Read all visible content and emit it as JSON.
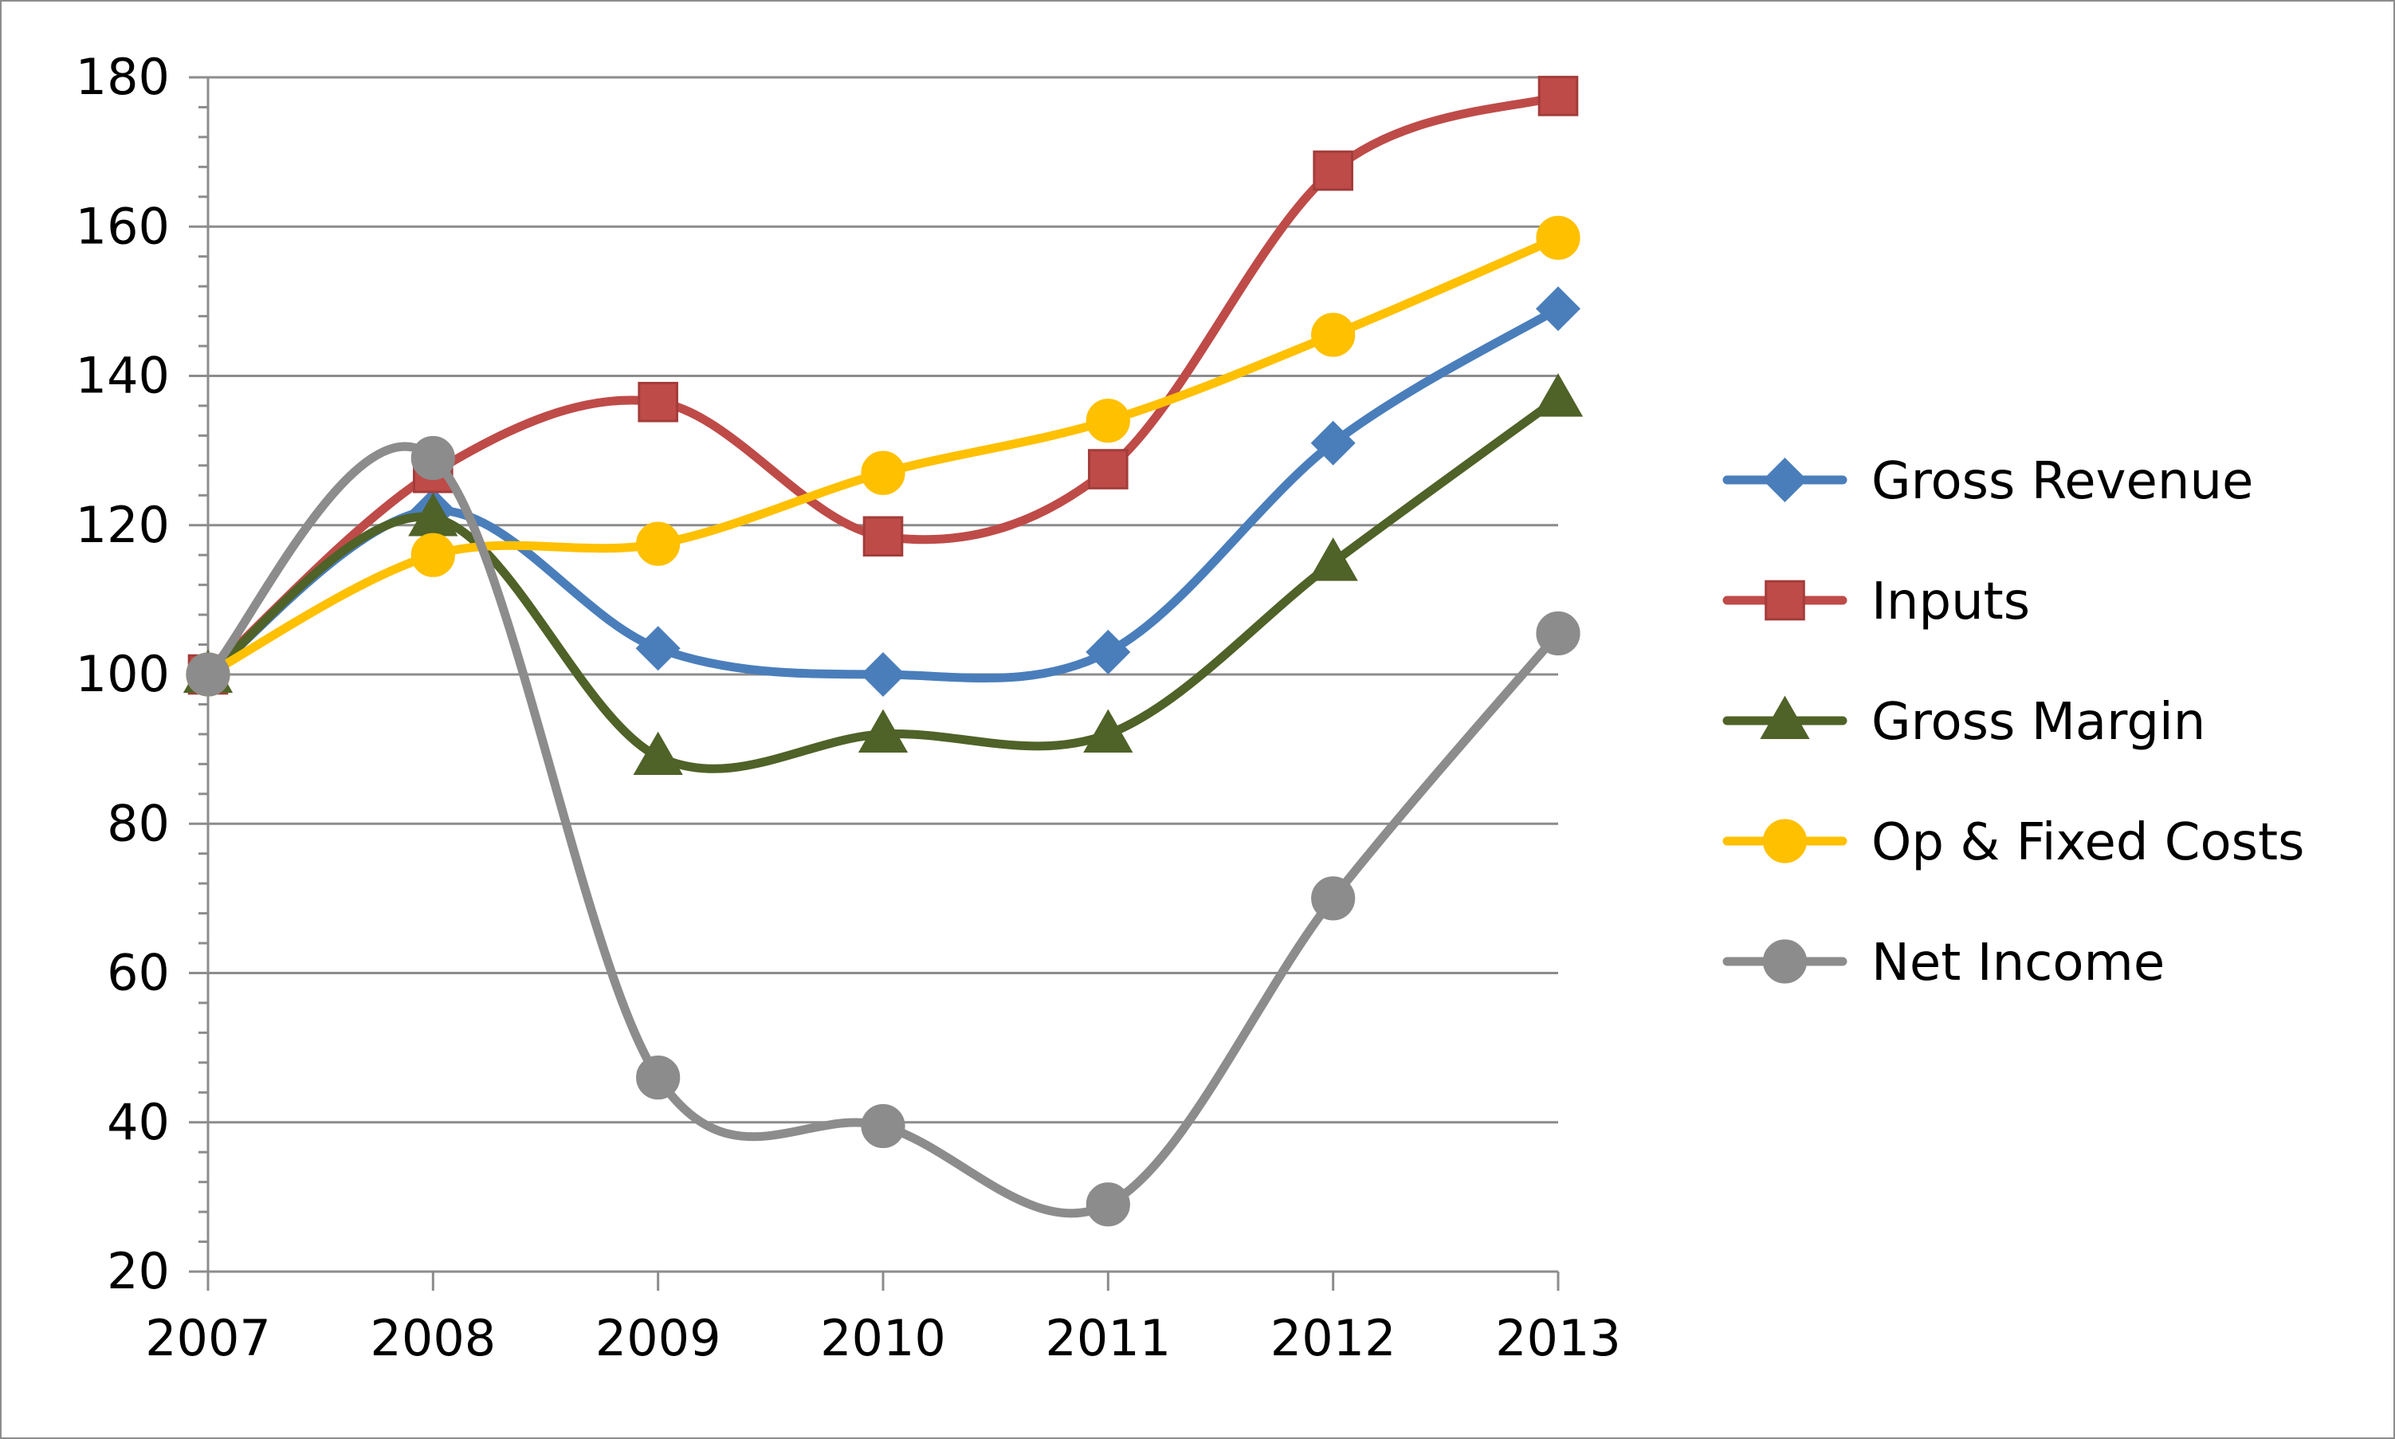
{
  "chart_data": {
    "type": "line",
    "title": "",
    "xlabel": "",
    "ylabel": "",
    "categories": [
      "2007",
      "2008",
      "2009",
      "2010",
      "2011",
      "2012",
      "2013"
    ],
    "ylim": [
      20,
      180
    ],
    "yticks": [
      20,
      40,
      60,
      80,
      100,
      120,
      140,
      160,
      180
    ],
    "grid": "horizontal",
    "smooth": true,
    "legend_position": "right",
    "series": [
      {
        "name": "Gross Revenue",
        "color": "#4a7ebb",
        "marker": "diamond",
        "values": [
          100,
          122,
          103.5,
          100,
          103,
          131,
          149
        ]
      },
      {
        "name": "Inputs",
        "color": "#be4b48",
        "marker": "square",
        "values": [
          100,
          127,
          136.5,
          118.5,
          127.5,
          167.5,
          177.5
        ]
      },
      {
        "name": "Gross Margin",
        "color": "#4f6228",
        "marker": "triangle",
        "values": [
          100,
          121,
          89,
          92,
          92,
          115,
          137
        ]
      },
      {
        "name": "Op & Fixed Costs",
        "color": "#ffc000",
        "marker": "circle",
        "values": [
          100,
          116,
          117.5,
          127,
          134,
          145.5,
          158.5
        ]
      },
      {
        "name": "Net Income",
        "color": "#8c8c8c",
        "marker": "circle",
        "values": [
          100,
          129,
          46,
          39.5,
          29,
          70,
          105.5
        ]
      }
    ]
  }
}
